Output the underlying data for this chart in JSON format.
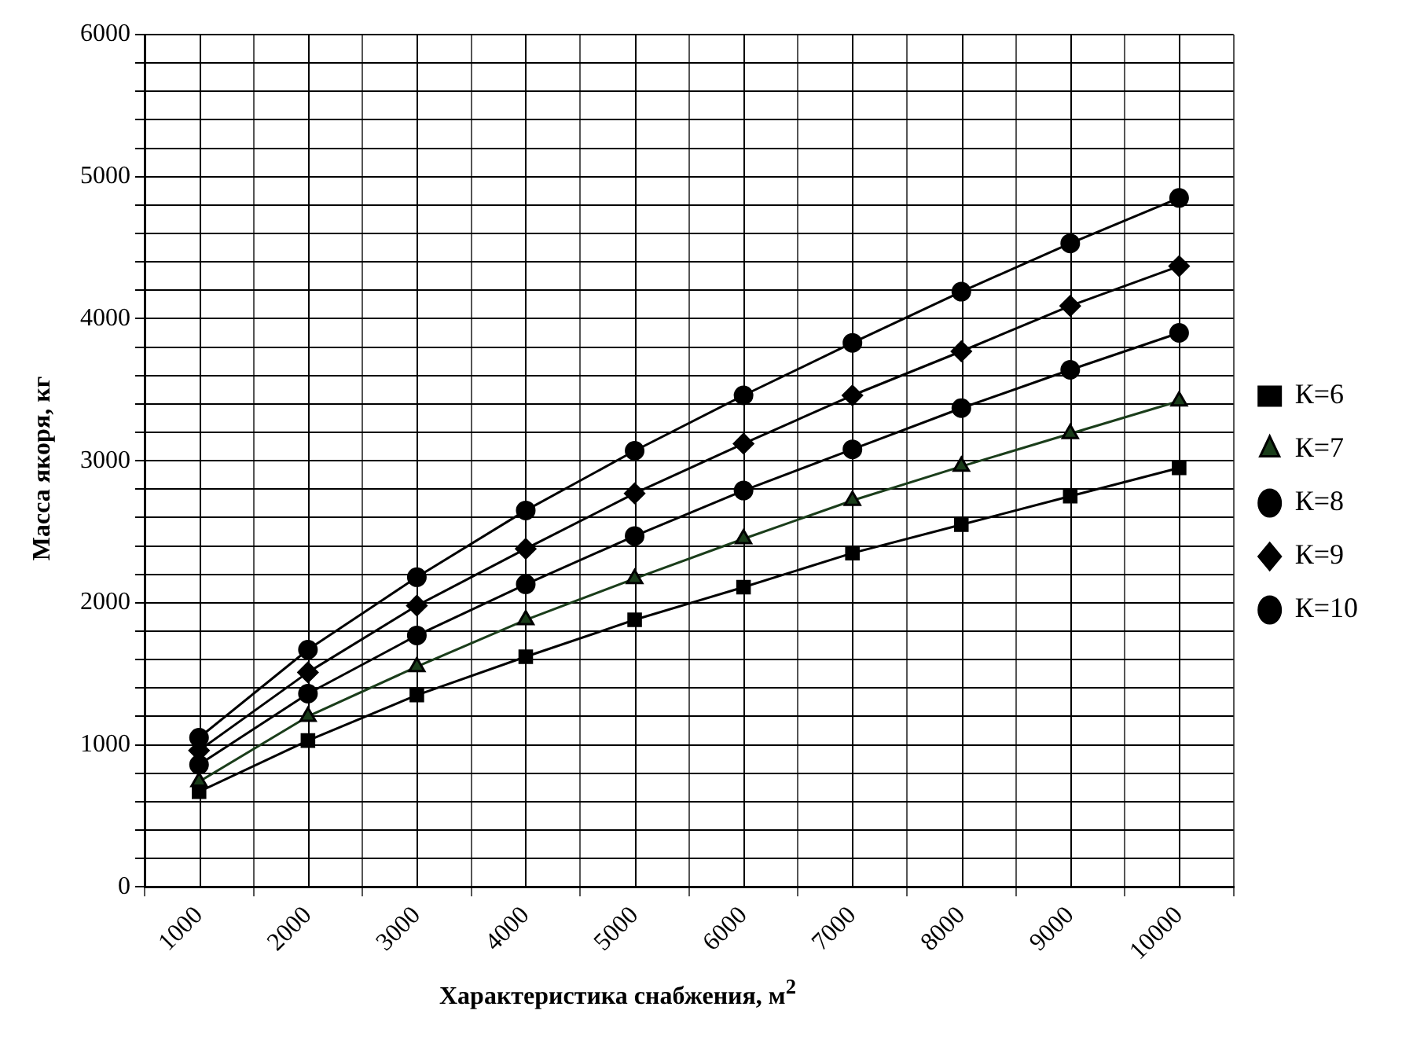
{
  "chart_data": {
    "type": "line",
    "xlabel": "Характеристика снабжения, м$^{2}$",
    "ylabel": "Масса якоря, кг",
    "categories": [
      "1000",
      "2000",
      "3000",
      "4000",
      "5000",
      "6000",
      "7000",
      "8000",
      "9000",
      "10000"
    ],
    "series": [
      {
        "name": "К=6",
        "color": "#000000",
        "marker": "square",
        "values": [
          670,
          1030,
          1350,
          1620,
          1880,
          2110,
          2350,
          2550,
          2750,
          2950
        ]
      },
      {
        "name": "К=7",
        "color": "#1a3d1a",
        "marker": "triangle",
        "values": [
          740,
          1200,
          1550,
          1880,
          2170,
          2450,
          2720,
          2960,
          3190,
          3420
        ]
      },
      {
        "name": "К=8",
        "color": "#000000",
        "marker": "circle",
        "values": [
          860,
          1360,
          1770,
          2130,
          2470,
          2790,
          3080,
          3370,
          3640,
          3900
        ]
      },
      {
        "name": "К=9",
        "color": "#000000",
        "marker": "diamond",
        "values": [
          960,
          1510,
          1980,
          2380,
          2770,
          3120,
          3460,
          3770,
          4090,
          4370
        ]
      },
      {
        "name": "К=10",
        "color": "#000000",
        "marker": "circle",
        "values": [
          1050,
          1670,
          2180,
          2650,
          3070,
          3460,
          3830,
          4190,
          4530,
          4850
        ]
      }
    ],
    "ylim": [
      0,
      6000
    ],
    "yticks": [
      0,
      {
        "value": 200,
        "label": null
      },
      {
        "value": 400,
        "label": null
      },
      {
        "value": 600,
        "label": null
      },
      {
        "value": 800,
        "label": null
      },
      1000,
      {
        "value": 1200,
        "label": null
      },
      {
        "value": 1400,
        "label": null
      },
      {
        "value": 1600,
        "label": null
      },
      {
        "value": 1800,
        "label": null
      },
      2000,
      {
        "value": 2200,
        "label": null
      },
      {
        "value": 2400,
        "label": null
      },
      {
        "value": 2600,
        "label": null
      },
      {
        "value": 2800,
        "label": null
      },
      3000,
      {
        "value": 3200,
        "label": null
      },
      {
        "value": 3400,
        "label": null
      },
      {
        "value": 3600,
        "label": null
      },
      {
        "value": 3800,
        "label": null
      },
      4000,
      {
        "value": 4200,
        "label": null
      },
      {
        "value": 4400,
        "label": null
      },
      {
        "value": 4600,
        "label": null
      },
      {
        "value": 4800,
        "label": null
      },
      5000,
      {
        "value": 5200,
        "label": null
      },
      {
        "value": 5400,
        "label": null
      },
      {
        "value": 5600,
        "label": null
      },
      {
        "value": 5800,
        "label": null
      },
      6000
    ],
    "grid": true,
    "legend": "right",
    "line_style": "solid"
  }
}
